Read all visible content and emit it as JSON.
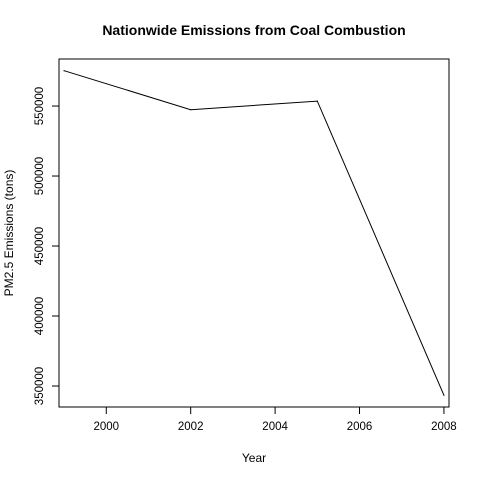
{
  "chart_data": {
    "type": "line",
    "title": "Nationwide Emissions from Coal Combustion",
    "xlabel": "Year",
    "ylabel": "PM2.5 Emissions (tons)",
    "x": [
      1999,
      2002,
      2005,
      2008
    ],
    "series": [
      {
        "values": [
          575207,
          547381,
          553549,
          343432
        ]
      }
    ],
    "xticks": [
      2000,
      2002,
      2004,
      2006,
      2008
    ],
    "xtick_labels": [
      "2000",
      "2002",
      "2004",
      "2006",
      "2008"
    ],
    "yticks": [
      350000,
      400000,
      450000,
      500000,
      550000
    ],
    "ytick_labels": [
      "350000",
      "400000",
      "450000",
      "500000",
      "550000"
    ],
    "xlim": [
      1998.88,
      2008.12
    ],
    "ylim": [
      335000,
      583600
    ],
    "grid": false,
    "colors": {
      "line": "#000000",
      "axis": "#000000",
      "background": "#ffffff"
    }
  }
}
